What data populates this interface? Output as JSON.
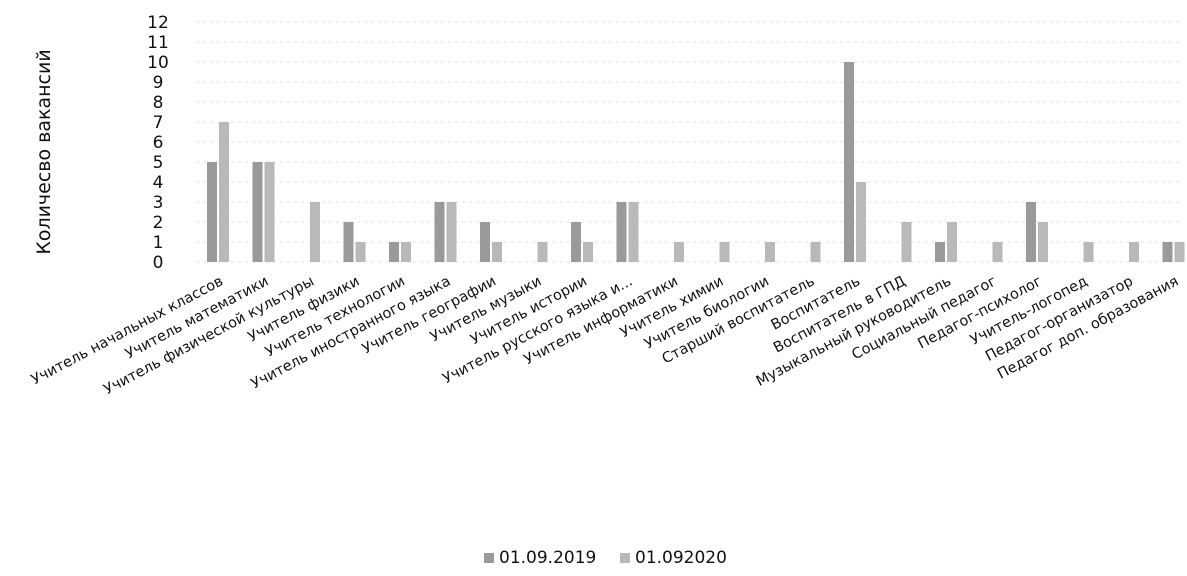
{
  "chart_data": {
    "type": "bar",
    "ylabel": "Количесво вакансий",
    "ylim": [
      0,
      12
    ],
    "yticks": [
      0,
      1,
      2,
      3,
      4,
      5,
      6,
      7,
      8,
      9,
      10,
      11,
      12
    ],
    "grid": true,
    "legend_position": "bottom",
    "categories": [
      "Учитель начальных классов",
      "Учитель математики",
      "Учитель физической культуры",
      "Учитель физики",
      "Учитель технологии",
      "Учитель иностранного языка",
      "Учитель географии",
      "Учитель музыки",
      "Учитель истории",
      "Учитель русского языка и...",
      "Учитель информатики",
      "Учитель химии",
      "Учитель биологии",
      "Старший воспитатель",
      "Воспитатель",
      "Воспитатель в ГПД",
      "Музыкальный руководитель",
      "Социальный педагог",
      "Педагог-психолог",
      "Учитель-логопед",
      "Педагог-организатор",
      "Педагог доп. образования"
    ],
    "series": [
      {
        "name": "01.09.2019",
        "color": "#9a9a9a",
        "values": [
          5,
          5,
          0,
          2,
          1,
          3,
          2,
          0,
          2,
          3,
          0,
          0,
          0,
          0,
          10,
          0,
          1,
          0,
          3,
          0,
          0,
          1
        ]
      },
      {
        "name": "01.092020",
        "color": "#b9b9b9",
        "values": [
          7,
          5,
          3,
          1,
          1,
          3,
          1,
          1,
          1,
          3,
          1,
          1,
          1,
          1,
          4,
          2,
          2,
          1,
          2,
          1,
          1,
          1
        ]
      }
    ]
  }
}
